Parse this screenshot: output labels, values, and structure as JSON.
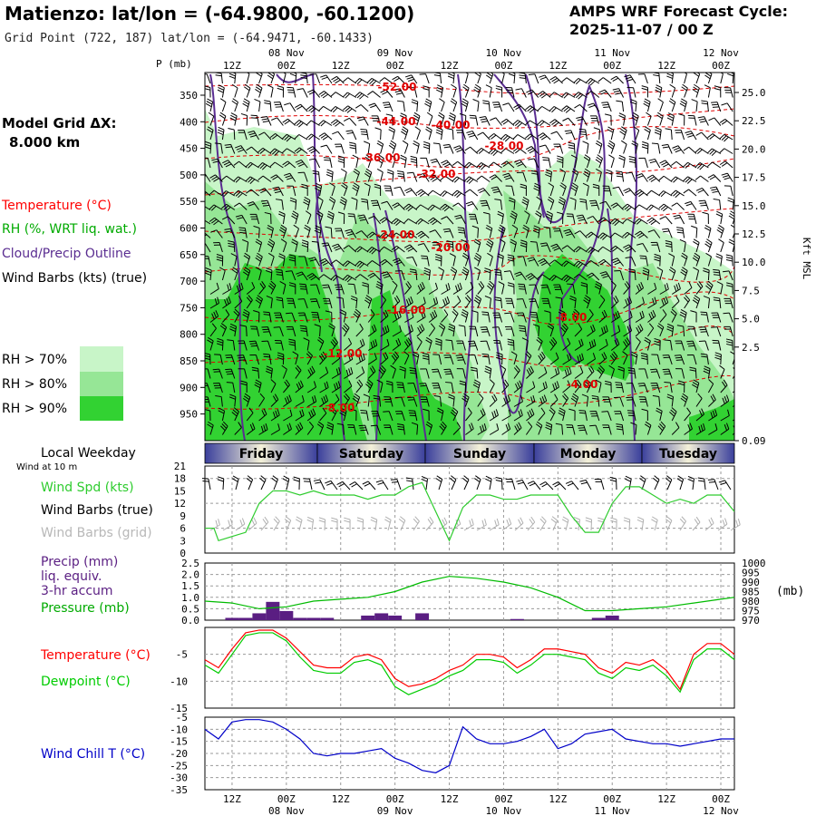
{
  "header": {
    "title": "Matienzo:  lat/lon = (-64.9800, -60.1200)",
    "grid_point": "Grid Point (722, 187) lat/lon = (-64.9471, -60.1433)",
    "cycle_line1": "AMPS WRF Forecast Cycle:",
    "cycle_line2": "2025-11-07 / 00  Z"
  },
  "time_axis": {
    "hour_labels": [
      "12Z",
      "00Z",
      "12Z",
      "00Z",
      "12Z",
      "00Z",
      "12Z",
      "00Z",
      "12Z",
      "00Z"
    ],
    "date_labels": [
      "08 Nov",
      "09 Nov",
      "10 Nov",
      "11 Nov",
      "12 Nov"
    ],
    "days": [
      "Friday",
      "Saturday",
      "Sunday",
      "Monday",
      "Tuesday"
    ],
    "weekday_title": "Local Weekday",
    "wind_note": "Wind at 10 m"
  },
  "colors": {
    "rh70": "#c8f5c8",
    "rh80": "#96e696",
    "rh90": "#32d232",
    "temp": "#ff0000",
    "dew": "#00cc00",
    "precip": "#5a1e82",
    "cloud": "#5a2d91",
    "windchill": "#0000c8",
    "wind_spd": "#2ecc2e"
  },
  "chart_data": [
    {
      "type": "heatmap",
      "name": "cross-section",
      "ylabel_left": "P (mb)",
      "ylabel_right": "Kft MSL",
      "pressure_ticks": [
        "350",
        "400",
        "450",
        "500",
        "550",
        "600",
        "650",
        "700",
        "750",
        "800",
        "850",
        "900",
        "950"
      ],
      "height_ticks": [
        "25.0",
        "22.5",
        "20.0",
        "17.5",
        "15.0",
        "12.5",
        "10.0",
        "7.5",
        "5.0",
        "2.5",
        "0.09"
      ],
      "legend": {
        "model_grid_title": "Model Grid ΔX:",
        "model_grid_value": "8.000 km",
        "temperature": "Temperature (°C)",
        "rh": "RH (%, WRT liq. wat.)",
        "cloud": "Cloud/Precip Outline",
        "wind": "Wind Barbs (kts) (true)",
        "rh70": "RH > 70%",
        "rh80": "RH > 80%",
        "rh90": "RH > 90%"
      },
      "temperature_contour_labels": [
        "-52.00",
        "-44.00",
        "-40.00",
        "-36.00",
        "-32.00",
        "-28.00",
        "-24.00",
        "-20.00",
        "-16.00",
        "-12.00",
        "-8.00",
        "-8.00",
        "-4.00"
      ]
    },
    {
      "type": "line",
      "name": "wind",
      "ylabel": "Wind Spd (kts)",
      "barbs_true": "Wind Barbs (true)",
      "barbs_grid": "Wind Barbs (grid)",
      "ylim": [
        0,
        21
      ],
      "yticks": [
        "21",
        "18",
        "15",
        "12",
        "9",
        "6",
        "3",
        "0"
      ],
      "x": [
        0,
        2,
        3,
        6,
        9,
        12,
        15,
        18,
        21,
        24,
        27,
        30,
        33,
        36,
        39,
        42,
        45,
        48,
        51,
        54,
        57,
        60,
        63,
        66,
        69,
        72,
        75,
        78,
        81,
        84,
        87,
        90,
        93,
        96,
        99,
        102,
        105,
        108,
        111,
        114,
        117
      ],
      "values": [
        6,
        6,
        3,
        4,
        5,
        12,
        15,
        15,
        14,
        15,
        14,
        14,
        14,
        13,
        14,
        14,
        16,
        17,
        10,
        3,
        11,
        14,
        14,
        13,
        13,
        14,
        14,
        14,
        9,
        5,
        5,
        12,
        16,
        16,
        14,
        12,
        13,
        12,
        14,
        14,
        10
      ]
    },
    {
      "type": "bar",
      "name": "precip-pressure",
      "ylabel": "Precip (mm)",
      "ylabel2": "liq. equiv.",
      "ylabel3": "3-hr accum",
      "ylabel_pressure": "Pressure (mb)",
      "right_unit": "(mb)",
      "precip_ylim": [
        0,
        2.5
      ],
      "precip_ticks": [
        "2.5",
        "2.0",
        "1.5",
        "1.0",
        "0.5",
        "0.0"
      ],
      "pressure_ylim": [
        970,
        1000
      ],
      "pressure_ticks": [
        "1000",
        "995",
        "990",
        "985",
        "980",
        "975",
        "970"
      ],
      "precip_x": [
        6,
        9,
        12,
        15,
        18,
        21,
        24,
        27,
        30,
        33,
        36,
        39,
        42,
        45,
        48,
        51,
        54,
        57,
        60,
        63,
        66,
        69,
        72,
        75,
        78,
        81,
        84,
        87,
        90,
        93,
        96,
        99,
        102,
        105,
        108,
        111,
        114
      ],
      "precip_values": [
        0.1,
        0.1,
        0.3,
        0.8,
        0.4,
        0.1,
        0.1,
        0.1,
        0,
        0,
        0.2,
        0.3,
        0.2,
        0,
        0.3,
        0,
        0,
        0,
        0,
        0,
        0,
        0.05,
        0,
        0,
        0,
        0,
        0,
        0.1,
        0.2,
        0,
        0,
        0,
        0,
        0,
        0,
        0,
        0
      ],
      "pressure_x": [
        0,
        6,
        12,
        18,
        24,
        30,
        36,
        42,
        48,
        54,
        60,
        66,
        72,
        78,
        84,
        90,
        96,
        102,
        108,
        114,
        117
      ],
      "pressure_values": [
        980,
        979,
        976,
        977,
        980,
        981,
        982,
        985,
        990,
        993,
        992,
        990,
        987,
        982,
        975,
        975,
        976,
        977,
        979,
        981,
        982
      ]
    },
    {
      "type": "line",
      "name": "temperature-dewpoint",
      "ylabel_temp": "Temperature (°C)",
      "ylabel_dew": "Dewpoint (°C)",
      "ylim": [
        -15,
        0
      ],
      "yticks": [
        "-5",
        "-10",
        "-15"
      ],
      "x": [
        0,
        3,
        6,
        9,
        12,
        15,
        18,
        21,
        24,
        27,
        30,
        33,
        36,
        39,
        42,
        45,
        48,
        51,
        54,
        57,
        60,
        63,
        66,
        69,
        72,
        75,
        78,
        81,
        84,
        87,
        90,
        93,
        96,
        99,
        102,
        105,
        108,
        111,
        114,
        117
      ],
      "temp": [
        -6,
        -7.5,
        -4,
        -1,
        -0.5,
        -0.5,
        -2,
        -4.5,
        -7,
        -7.5,
        -7.5,
        -5.5,
        -5,
        -6,
        -9.5,
        -11,
        -10.5,
        -9.5,
        -8,
        -7,
        -5,
        -5,
        -5.5,
        -7.5,
        -6,
        -4,
        -4,
        -4.5,
        -5,
        -7.5,
        -8.5,
        -6.5,
        -7,
        -6,
        -8,
        -11.5,
        -5,
        -3,
        -3,
        -5
      ],
      "dew": [
        -7,
        -8.5,
        -5,
        -1.5,
        -1,
        -1,
        -2.5,
        -5.5,
        -8,
        -8.5,
        -8.5,
        -6.5,
        -6,
        -7,
        -11,
        -12.5,
        -11.5,
        -10.5,
        -9,
        -8,
        -6,
        -6,
        -6.5,
        -8.5,
        -7,
        -5,
        -5,
        -5.5,
        -6,
        -8.5,
        -9.5,
        -7.5,
        -8,
        -7,
        -9,
        -12,
        -6,
        -4,
        -4,
        -6
      ]
    },
    {
      "type": "line",
      "name": "wind-chill",
      "ylabel": "Wind Chill T (°C)",
      "ylim": [
        -35,
        -5
      ],
      "yticks": [
        "-5",
        "-10",
        "-15",
        "-20",
        "-25",
        "-30",
        "-35"
      ],
      "x": [
        0,
        3,
        6,
        9,
        12,
        15,
        18,
        21,
        24,
        27,
        30,
        33,
        36,
        39,
        42,
        45,
        48,
        51,
        54,
        57,
        60,
        63,
        66,
        69,
        72,
        75,
        78,
        81,
        84,
        87,
        90,
        93,
        96,
        99,
        102,
        105,
        108,
        111,
        114,
        117
      ],
      "values": [
        -10,
        -14,
        -7,
        -6,
        -6,
        -7,
        -10,
        -14,
        -20,
        -21,
        -20,
        -20,
        -19,
        -18,
        -22,
        -24,
        -27,
        -28,
        -25,
        -9,
        -14,
        -16,
        -16,
        -15,
        -13,
        -10,
        -18,
        -16,
        -12,
        -11,
        -10,
        -14,
        -15,
        -16,
        -16,
        -17,
        -16,
        -15,
        -14,
        -14
      ]
    }
  ]
}
